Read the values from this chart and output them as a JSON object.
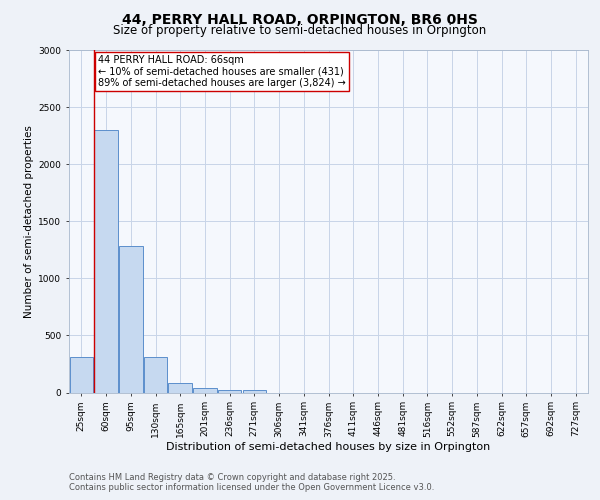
{
  "title_line1": "44, PERRY HALL ROAD, ORPINGTON, BR6 0HS",
  "title_line2": "Size of property relative to semi-detached houses in Orpington",
  "xlabel": "Distribution of semi-detached houses by size in Orpington",
  "ylabel": "Number of semi-detached properties",
  "categories": [
    "25sqm",
    "60sqm",
    "95sqm",
    "130sqm",
    "165sqm",
    "201sqm",
    "236sqm",
    "271sqm",
    "306sqm",
    "341sqm",
    "376sqm",
    "411sqm",
    "446sqm",
    "481sqm",
    "516sqm",
    "552sqm",
    "587sqm",
    "622sqm",
    "657sqm",
    "692sqm",
    "727sqm"
  ],
  "values": [
    310,
    2300,
    1280,
    310,
    80,
    40,
    25,
    20,
    0,
    0,
    0,
    0,
    0,
    0,
    0,
    0,
    0,
    0,
    0,
    0,
    0
  ],
  "bar_color": "#c6d9f0",
  "bar_edge_color": "#5b8fcc",
  "property_line_color": "#cc0000",
  "annotation_text": "44 PERRY HALL ROAD: 66sqm\n← 10% of semi-detached houses are smaller (431)\n89% of semi-detached houses are larger (3,824) →",
  "annotation_box_facecolor": "#ffffff",
  "annotation_box_edgecolor": "#cc0000",
  "ylim": [
    0,
    3000
  ],
  "yticks": [
    0,
    500,
    1000,
    1500,
    2000,
    2500,
    3000
  ],
  "footer_line1": "Contains HM Land Registry data © Crown copyright and database right 2025.",
  "footer_line2": "Contains public sector information licensed under the Open Government Licence v3.0.",
  "bg_color": "#eef2f8",
  "plot_bg_color": "#f5f8fd",
  "grid_color": "#c8d4e8",
  "title1_fontsize": 10,
  "title2_fontsize": 8.5,
  "xlabel_fontsize": 8,
  "ylabel_fontsize": 7.5,
  "tick_fontsize": 6.5,
  "annotation_fontsize": 7,
  "footer_fontsize": 6
}
